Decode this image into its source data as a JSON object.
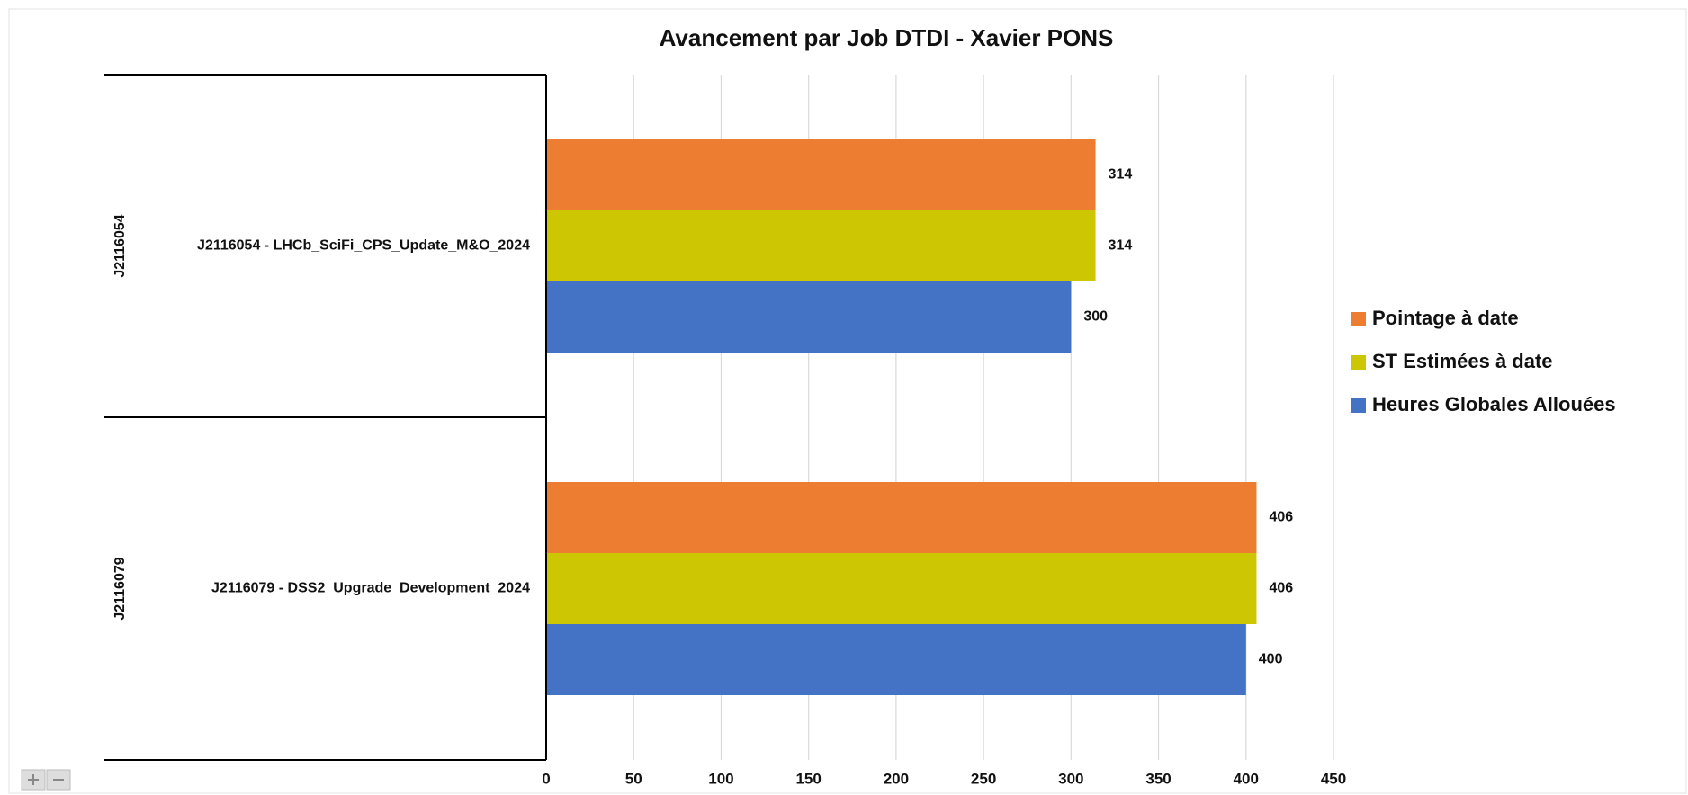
{
  "chart_data": {
    "type": "bar",
    "orientation": "horizontal",
    "title": "Avancement par Job DTDI - Xavier PONS",
    "category_groups": [
      "J2116054",
      "J2116079"
    ],
    "categories": [
      "J2116054 - LHCb_SciFi_CPS_Update_M&O_2024",
      "J2116079 - DSS2_Upgrade_Development_2024"
    ],
    "series": [
      {
        "name": "Pointage à date",
        "color": "#ed7d31",
        "values": [
          314,
          406
        ]
      },
      {
        "name": "ST Estimées à date",
        "color": "#cdc703",
        "values": [
          314,
          406
        ]
      },
      {
        "name": "Heures Globales Allouées",
        "color": "#4472c4",
        "values": [
          300,
          400
        ]
      }
    ],
    "xlim": [
      0,
      450
    ],
    "xticks": [
      0,
      50,
      100,
      150,
      200,
      250,
      300,
      350,
      400,
      450
    ],
    "grid": true,
    "legend": "right"
  }
}
